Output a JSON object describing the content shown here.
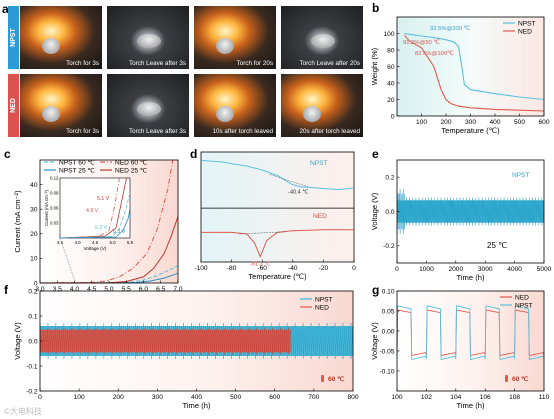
{
  "panels": {
    "a": "a",
    "b": "b",
    "c": "c",
    "d": "d",
    "e": "e",
    "f": "f",
    "g": "g"
  },
  "photos": {
    "rows": [
      {
        "tag": "NPST",
        "color": "#2b9bd6",
        "captions": [
          "Torch for 3s",
          "Torch Leave after 3s",
          "Torch for 20s",
          "Torch Leave after 20s"
        ],
        "flame": [
          true,
          false,
          true,
          false
        ]
      },
      {
        "tag": "NED",
        "color": "#d9534f",
        "captions": [
          "Torch for 3s",
          "Torch Leave after 3s",
          "10s after torch leaved",
          "20s after torch leaved"
        ],
        "flame": [
          true,
          false,
          true,
          true
        ]
      }
    ]
  },
  "chart_data": [
    {
      "id": "b",
      "type": "line",
      "xlabel": "Temperature (℃)",
      "ylabel": "Weight (%)",
      "xlim": [
        0,
        600
      ],
      "ylim": [
        0,
        120
      ],
      "xticks": [
        100,
        200,
        300,
        400,
        500,
        600
      ],
      "yticks": [
        0,
        20,
        40,
        60,
        80,
        100
      ],
      "legend_position": "top-right",
      "series": [
        {
          "name": "NPST",
          "color": "#5bc0de",
          "x": [
            30,
            50,
            100,
            150,
            200,
            230,
            250,
            262,
            275,
            300,
            400,
            500,
            600
          ],
          "y": [
            100,
            99,
            97,
            95,
            92.5,
            90,
            85,
            65,
            38,
            32,
            27,
            23,
            20
          ]
        },
        {
          "name": "NED",
          "color": "#e05a4e",
          "x": [
            30,
            50,
            100,
            150,
            180,
            200,
            220,
            250,
            300,
            400,
            500,
            600
          ],
          "y": [
            98,
            91.2,
            82.5,
            60,
            32,
            20,
            15,
            12,
            10,
            8,
            7,
            6
          ]
        }
      ],
      "annotations": [
        "92.5%@200 ℃",
        "91.2%@50 ℃",
        "82.5%@100℃"
      ]
    },
    {
      "id": "c",
      "type": "line",
      "xlabel": "Voltage (V vs. Na⁺/Na)",
      "ylabel": "Current (mA cm⁻²)",
      "xlim": [
        3.0,
        7.0
      ],
      "ylim": [
        0,
        50
      ],
      "xticks": [
        3.0,
        3.5,
        4.0,
        4.5,
        5.0,
        5.5,
        6.0,
        6.5,
        7.0
      ],
      "yticks": [
        0,
        10,
        20,
        30,
        40
      ],
      "legend_position": "top",
      "series": [
        {
          "name": "NPST 60 ℃",
          "color": "#5bc0de",
          "dash": "4,2",
          "x": [
            3.0,
            5.0,
            5.6,
            6.0,
            6.4,
            6.7,
            7.0
          ],
          "y": [
            0,
            0.05,
            0.3,
            1.2,
            3,
            5,
            7
          ]
        },
        {
          "name": "NPST 25 ℃",
          "color": "#2b8fc2",
          "dash": "",
          "x": [
            3.0,
            5.0,
            5.8,
            6.2,
            6.6,
            7.0
          ],
          "y": [
            0,
            0.03,
            0.2,
            0.8,
            2,
            4
          ]
        },
        {
          "name": "NED 60 ℃",
          "color": "#e05a4e",
          "dash": "5,2,1,2",
          "x": [
            3.0,
            4.5,
            4.9,
            5.3,
            5.7,
            6.1,
            6.4,
            6.7,
            6.85
          ],
          "y": [
            0,
            0.2,
            0.8,
            2.5,
            6,
            12,
            22,
            38,
            50
          ]
        },
        {
          "name": "NED 25 ℃",
          "color": "#c0392b",
          "dash": "",
          "x": [
            3.0,
            5.0,
            5.5,
            6.0,
            6.3,
            6.6,
            6.8,
            7.0
          ],
          "y": [
            0,
            0.1,
            0.6,
            2.5,
            6,
            12,
            19,
            27
          ]
        }
      ],
      "inset": {
        "xlabel": "Voltage (V)",
        "ylabel": "Current (mA cm⁻²)",
        "xlim": [
          3.5,
          5.5
        ],
        "ylim": [
          0,
          0.12
        ],
        "xticks": [
          3.5,
          4.0,
          4.5,
          5.0,
          5.5
        ],
        "yticks": [
          0.03,
          0.06,
          0.09,
          0.12
        ],
        "labels": [
          "5.1 V",
          "4.9 V",
          "5.2 V",
          "5.3 V"
        ]
      }
    },
    {
      "id": "d",
      "type": "line",
      "xlabel": "Temperature (℃)",
      "xlim": [
        -100,
        0
      ],
      "xticks": [
        -100,
        -80,
        -60,
        -40,
        -20,
        0
      ],
      "series": [
        {
          "name": "NPST",
          "color": "#5bc0de",
          "x": [
            -100,
            -85,
            -78,
            -70,
            -60,
            -50,
            -40.4,
            -35,
            -20,
            -10,
            0
          ],
          "y": [
            0.85,
            0.82,
            0.78,
            0.75,
            0.68,
            0.58,
            0.42,
            0.38,
            0.35,
            0.33,
            0.36
          ]
        },
        {
          "name": "NED",
          "color": "#e05a4e",
          "x": [
            -100,
            -80,
            -70,
            -65,
            -61.3,
            -57,
            -50,
            -40,
            -20,
            0
          ],
          "y": [
            0.55,
            0.55,
            0.52,
            0.35,
            0.1,
            0.4,
            0.55,
            0.58,
            0.6,
            0.6
          ]
        }
      ],
      "annotations": [
        "-40.4 ℃",
        "-61.3 ℃"
      ]
    },
    {
      "id": "e",
      "type": "line",
      "xlabel": "Time (h)",
      "ylabel": "Voltage (V)",
      "xlim": [
        0,
        5000
      ],
      "ylim": [
        -0.3,
        0.3
      ],
      "xticks": [
        0,
        1000,
        2000,
        3000,
        4000,
        5000
      ],
      "yticks": [
        -0.2,
        0.0,
        0.2
      ],
      "series": [
        {
          "name": "NPST",
          "color": "#3ab7d9",
          "amplitude": 0.065
        }
      ],
      "annotations": [
        "25 ℃"
      ]
    },
    {
      "id": "f",
      "type": "line",
      "xlabel": "Time (h)",
      "ylabel": "Voltage (V)",
      "xlim": [
        0,
        800
      ],
      "ylim": [
        -0.2,
        0.2
      ],
      "xticks": [
        0,
        100,
        200,
        300,
        400,
        500,
        600,
        700,
        800
      ],
      "yticks": [
        -0.2,
        -0.1,
        0.0,
        0.1,
        0.2
      ],
      "legend_position": "top-right",
      "series": [
        {
          "name": "NPST",
          "color": "#3ab7d9",
          "t_end": 800,
          "amplitude": 0.06
        },
        {
          "name": "NED",
          "color": "#e05a4e",
          "t_end": 640,
          "amplitude": 0.045
        }
      ],
      "annotations": [
        "60 ℃"
      ]
    },
    {
      "id": "g",
      "type": "line",
      "xlabel": "Time (h)",
      "ylabel": "Voltage (V)",
      "xlim": [
        100,
        110
      ],
      "ylim": [
        -0.15,
        0.1
      ],
      "xticks": [
        100,
        102,
        104,
        106,
        108,
        110
      ],
      "yticks": [
        -0.1,
        -0.05,
        0.0,
        0.05,
        0.1
      ],
      "legend_position": "top-right",
      "series": [
        {
          "name": "NED",
          "color": "#e05a4e",
          "high": 0.05,
          "low": -0.06
        },
        {
          "name": "NPST",
          "color": "#5bc0de",
          "high": 0.06,
          "low": -0.07
        }
      ],
      "period": 2,
      "annotations": [
        "60 ℃"
      ]
    }
  ],
  "watermark": "©大电科技"
}
